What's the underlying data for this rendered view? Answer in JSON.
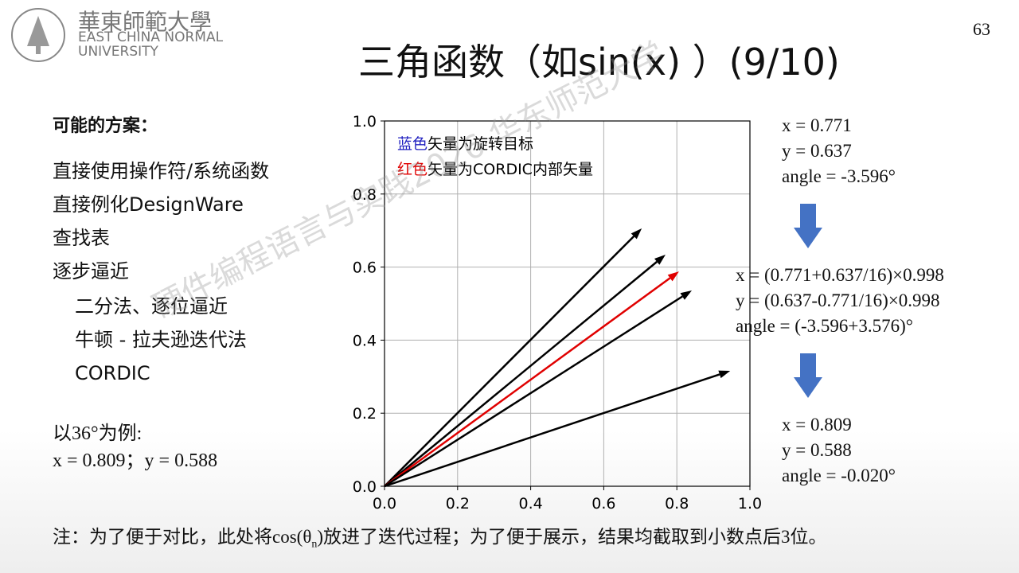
{
  "header": {
    "logo_cn": "華東師範大學",
    "logo_en1": "EAST CHINA NORMAL",
    "logo_en2": "UNIVERSITY",
    "page_number": "63",
    "title": "三角函数（如sin(x) ）(9/10)"
  },
  "left": {
    "heading": "可能的方案：",
    "items": [
      "直接使用操作符/系统函数",
      "直接例化DesignWare",
      "查找表",
      "逐步逼近"
    ],
    "subitems": [
      "二分法、逐位逼近",
      "牛顿 - 拉夫逊迭代法",
      "CORDIC"
    ],
    "example_title": "以36°为例:",
    "example_values": "x = 0.809；y = 0.588"
  },
  "chart": {
    "type": "vector",
    "legend_blue": "蓝色",
    "legend_blue_rest": "矢量为旋转目标",
    "legend_red": "红色",
    "legend_red_rest": "矢量为CORDIC内部矢量",
    "xlim": [
      0,
      1
    ],
    "ylim": [
      0,
      1
    ],
    "xticks": [
      {
        "value": 0,
        "label": "0.0"
      },
      {
        "value": 0.2,
        "label": "0.2"
      },
      {
        "value": 0.4,
        "label": "0.4"
      },
      {
        "value": 0.6,
        "label": "0.6"
      },
      {
        "value": 0.8,
        "label": "0.8"
      },
      {
        "value": 1,
        "label": "1.0"
      }
    ],
    "yticks": [
      {
        "value": 0,
        "label": "0.0"
      },
      {
        "value": 0.2,
        "label": "0.2"
      },
      {
        "value": 0.4,
        "label": "0.4"
      },
      {
        "value": 0.6,
        "label": "0.6"
      },
      {
        "value": 0.8,
        "label": "0.8"
      },
      {
        "value": 1,
        "label": "1.0"
      }
    ],
    "grid": true,
    "vectors": [
      {
        "color": "#000000",
        "x": 0.704,
        "y": 0.706
      },
      {
        "color": "#000000",
        "x": 0.769,
        "y": 0.634
      },
      {
        "color": "#e00000",
        "x": 0.806,
        "y": 0.588
      },
      {
        "color": "#000000",
        "x": 0.841,
        "y": 0.536
      },
      {
        "color": "#000000",
        "x": 0.946,
        "y": 0.316
      }
    ]
  },
  "right": {
    "top": [
      "x = 0.771",
      "y = 0.637",
      "angle = -3.596°"
    ],
    "middle": [
      "x = (0.771+0.637/16)×0.998",
      "y = (0.637-0.771/16)×0.998",
      "angle = (-3.596+3.576)°"
    ],
    "bottom": [
      "x = 0.809",
      "y = 0.588",
      "angle = -0.020°"
    ]
  },
  "note": {
    "part1": "注：为了便于对比，此处将cos(θ",
    "sub": "n",
    "part2": ")放进了迭代过程；为了便于展示，结果均截取到小数点后3位。"
  },
  "watermark": "硬件编程语言与实践2026 华东师范大学"
}
